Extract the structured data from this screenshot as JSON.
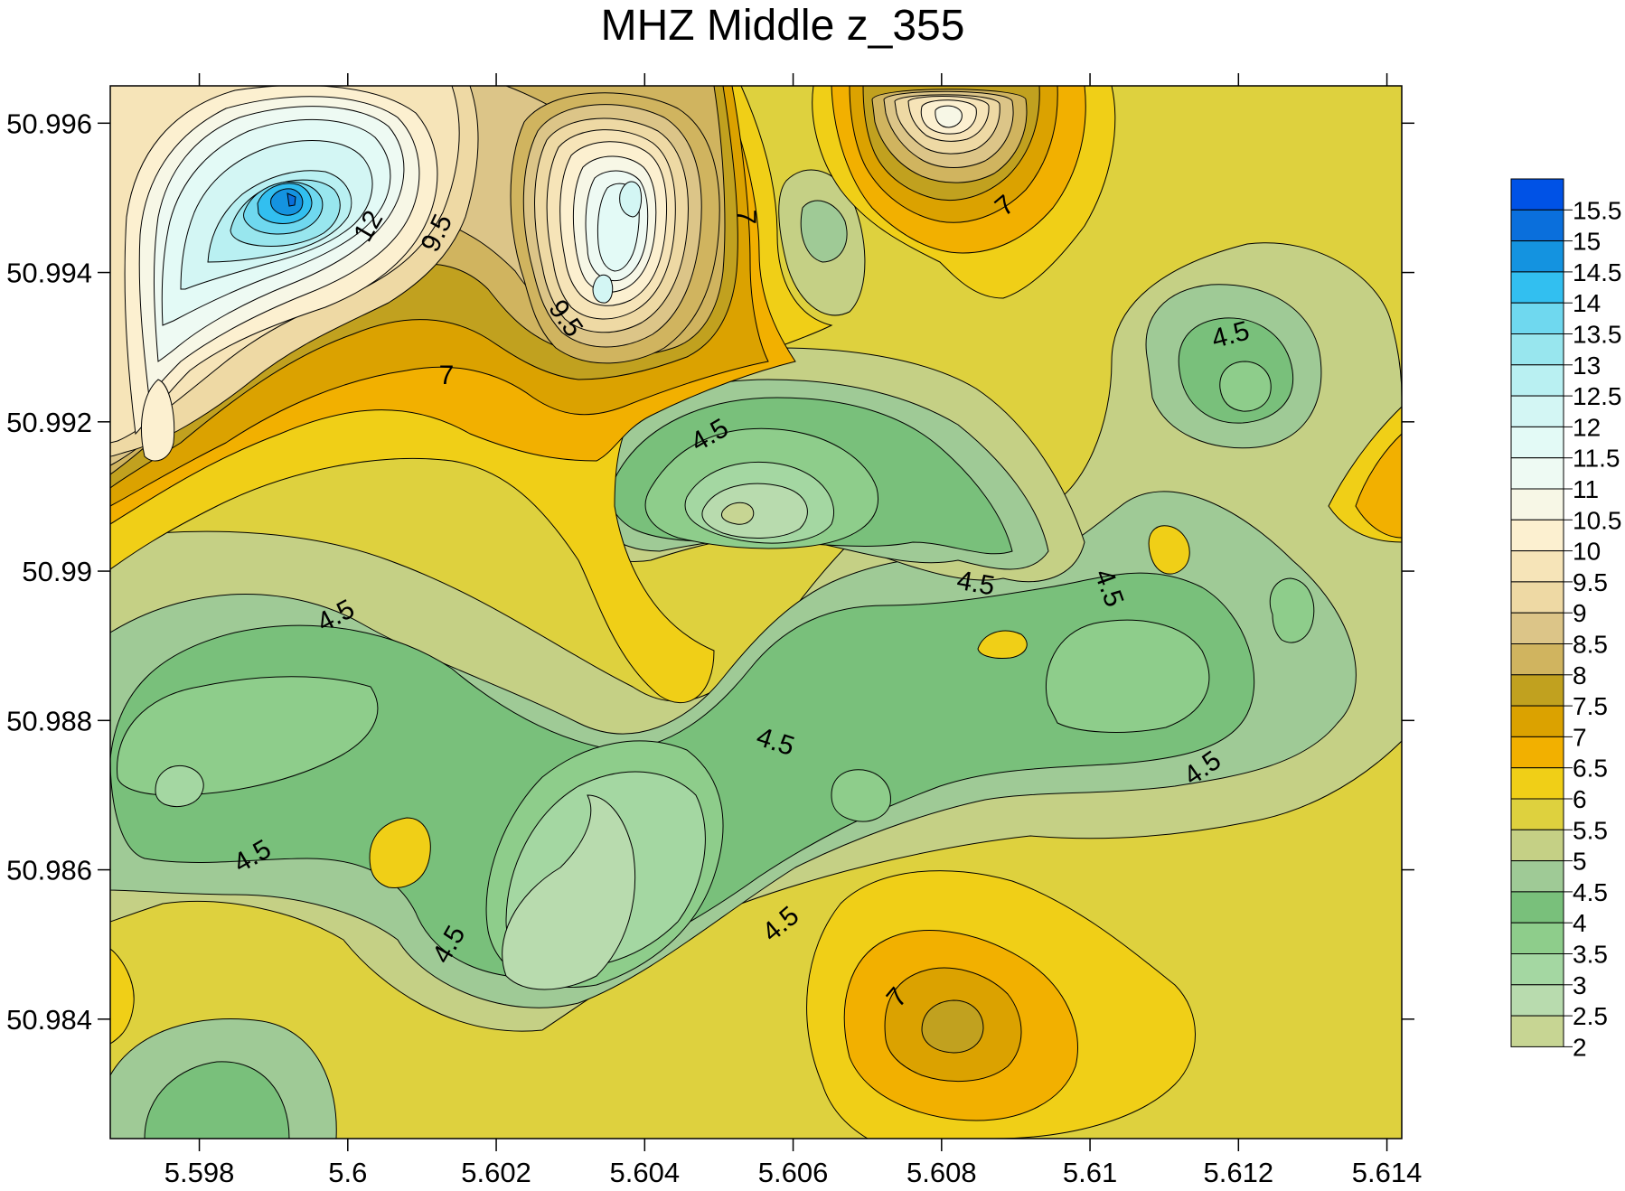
{
  "chart_data": {
    "type": "heatmap",
    "subtype": "filled-contour",
    "title": "MHZ Middle z_355",
    "x_ticks": [
      "5.598",
      "5.6",
      "5.602",
      "5.604",
      "5.606",
      "5.608",
      "5.61",
      "5.612",
      "5.614"
    ],
    "x_tick_values": [
      5.598,
      5.6,
      5.602,
      5.604,
      5.606,
      5.608,
      5.61,
      5.612,
      5.614
    ],
    "y_ticks": [
      "50.996",
      "50.994",
      "50.992",
      "50.99",
      "50.988",
      "50.986",
      "50.984"
    ],
    "y_tick_values": [
      50.996,
      50.994,
      50.992,
      50.99,
      50.988,
      50.986,
      50.984
    ],
    "xlim": [
      5.5968,
      5.6142
    ],
    "ylim": [
      50.9824,
      50.9965
    ],
    "colorbar": {
      "labels": [
        "15.5",
        "15",
        "14.5",
        "14",
        "13.5",
        "13",
        "12.5",
        "12",
        "11.5",
        "11",
        "10.5",
        "10",
        "9.5",
        "9",
        "8.5",
        "8",
        "7.5",
        "7",
        "6.5",
        "6",
        "5.5",
        "5",
        "4.5",
        "4",
        "3.5",
        "3",
        "2.5",
        "2"
      ],
      "colors": [
        "#0052e6",
        "#0a6fdc",
        "#1493e0",
        "#32bff0",
        "#6fd8ef",
        "#98e6ee",
        "#b9f0f2",
        "#d3f6f4",
        "#e3faf6",
        "#eefaf3",
        "#f7f7e6",
        "#fcf0d0",
        "#f6e4b8",
        "#eed9a4",
        "#dcc588",
        "#d0b45f",
        "#c1a11f",
        "#dba200",
        "#f2b000",
        "#f0cf17",
        "#ded13e",
        "#c5d085",
        "#9fca96",
        "#79c07b",
        "#8ecd8b",
        "#a4d7a2",
        "#b8dbae",
        "#c7d593"
      ]
    },
    "contour_labels": [
      "4.5",
      "4.5",
      "4.5",
      "4.5",
      "4.5",
      "4.5",
      "4.5",
      "4.5",
      "4.5",
      "4.5",
      "4.5",
      "7",
      "7",
      "7",
      "7",
      "9.5",
      "9.5",
      "12"
    ],
    "features": [
      {
        "type": "high",
        "x": 5.5994,
        "y": 50.9951,
        "peak": 15.5
      },
      {
        "type": "high",
        "x": 5.6034,
        "y": 50.9948,
        "peak": 11.5
      },
      {
        "type": "high",
        "x": 5.608,
        "y": 50.9961,
        "peak": 10
      },
      {
        "type": "high",
        "x": 5.6081,
        "y": 50.9839,
        "peak": 7.5
      },
      {
        "type": "low",
        "x": 5.6052,
        "y": 50.9908,
        "peak": 2.5
      },
      {
        "type": "low",
        "x": 5.6035,
        "y": 50.9856,
        "peak": 2.5
      },
      {
        "type": "low",
        "x": 5.6121,
        "y": 50.9924,
        "peak": 3.5
      },
      {
        "type": "low",
        "x": 5.598,
        "y": 50.983,
        "peak": 4
      }
    ]
  }
}
